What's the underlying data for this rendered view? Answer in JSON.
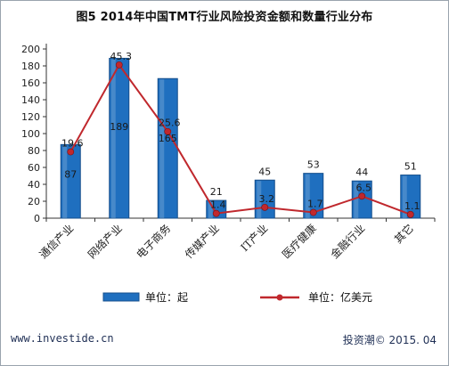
{
  "title": "图5 2014年中国TMT行业风险投资金额和数量行业分布",
  "footer": {
    "left": "www.investide.cn",
    "right": "投资潮© 2015. 04"
  },
  "colors": {
    "bar": "#1f6fbf",
    "bar_edge": "#154f8c",
    "line": "#c0282d",
    "axis": "#333333",
    "frame": "#9aa3ad"
  },
  "chart_data": {
    "type": "bar+line",
    "title": "图5 2014年中国TMT行业风险投资金额和数量行业分布",
    "categories": [
      "通信产业",
      "网络产业",
      "电子商务",
      "传媒产业",
      "IT产业",
      "医疗健康",
      "金融行业",
      "其它"
    ],
    "ylim": [
      0,
      200
    ],
    "yticks": [
      0,
      20,
      40,
      60,
      80,
      100,
      120,
      140,
      160,
      180,
      200
    ],
    "grid": false,
    "legend_position": "bottom",
    "series": [
      {
        "name": "单位：起",
        "type": "bar",
        "values": [
          87,
          189,
          165,
          21,
          45,
          53,
          44,
          51
        ],
        "labels": [
          "87",
          "189",
          "165",
          "21",
          "45",
          "53",
          "44",
          "51"
        ]
      },
      {
        "name": "单位：亿美元",
        "type": "line",
        "values": [
          19.6,
          45.3,
          25.6,
          1.4,
          3.2,
          1.7,
          6.5,
          1.1
        ],
        "labels": [
          "19.6",
          "45.3",
          "25.6",
          "1.4",
          "3.2",
          "1.7",
          "6.5",
          "1.1"
        ]
      }
    ]
  }
}
